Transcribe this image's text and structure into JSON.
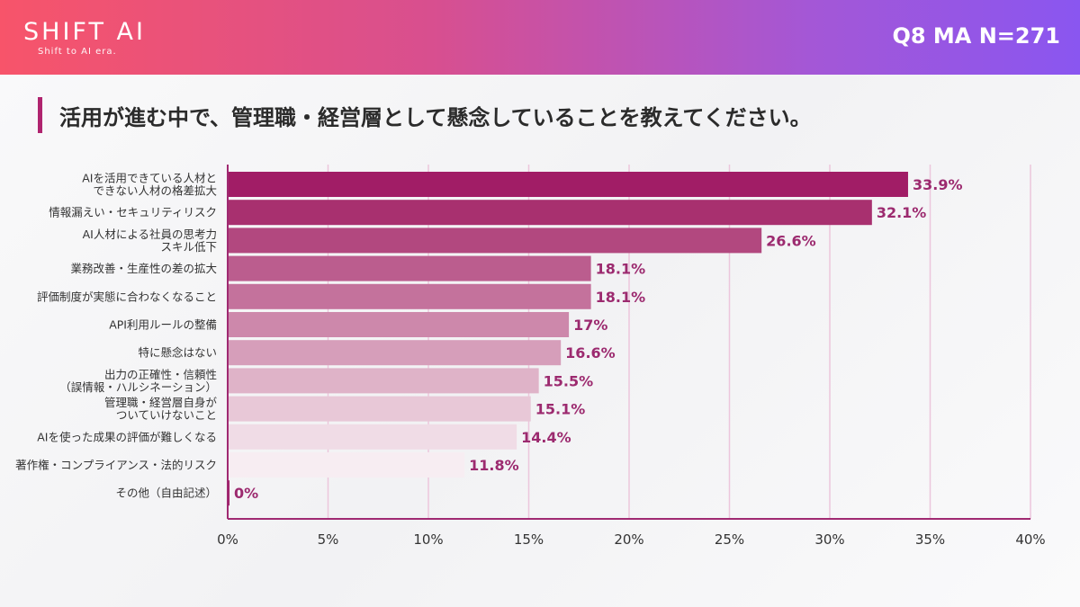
{
  "header": {
    "logo": "SHIFT AI",
    "tagline": "Shift to AI era.",
    "question_info": "Q8 MA N=271"
  },
  "page_title": "活用が進む中で、管理職・経営層として懸念していることを教えてください。",
  "colors": {
    "accent": "#b0246f",
    "value_label": "#9c2a6f",
    "axis": "#a02a72"
  },
  "chart_data": {
    "type": "bar",
    "orientation": "horizontal",
    "categories": [
      [
        "AIを活用できている人材と",
        "できない人材の格差拡大"
      ],
      [
        "情報漏えい・セキュリティリスク"
      ],
      [
        "AI人材による社員の思考力",
        "スキル低下"
      ],
      [
        "業務改善・生産性の差の拡大"
      ],
      [
        "評価制度が実態に合わなくなること"
      ],
      [
        "API利用ルールの整備"
      ],
      [
        "特に懸念はない"
      ],
      [
        "出力の正確性・信頼性",
        "（誤情報・ハルシネーション）"
      ],
      [
        "管理職・経営層自身が",
        "ついていけないこと"
      ],
      [
        "AIを使った成果の評価が難しくなる"
      ],
      [
        "著作権・コンプライアンス・法的リスク"
      ],
      [
        "その他（自由記述）"
      ]
    ],
    "values": [
      33.9,
      32.1,
      26.6,
      18.1,
      18.1,
      17,
      16.6,
      15.5,
      15.1,
      14.4,
      11.8,
      0
    ],
    "value_labels": [
      "33.9%",
      "32.1%",
      "26.6%",
      "18.1%",
      "18.1%",
      "17%",
      "16.6%",
      "15.5%",
      "15.1%",
      "14.4%",
      "11.8%",
      "0%"
    ],
    "bar_colors": [
      "#a11d66",
      "#a8306f",
      "#b2487f",
      "#bb5d8e",
      "#c4729c",
      "#cd88ab",
      "#d69eba",
      "#dfb3c8",
      "#e8c8d7",
      "#f0dce6",
      "#f7edf2",
      "#a11d66"
    ],
    "xlim": [
      0,
      40
    ],
    "xticks": [
      0,
      5,
      10,
      15,
      20,
      25,
      30,
      35,
      40
    ],
    "xtick_labels": [
      "0%",
      "5%",
      "10%",
      "15%",
      "20%",
      "25%",
      "30%",
      "35%",
      "40%"
    ],
    "grid": "vertical",
    "xlabel": "",
    "ylabel": ""
  }
}
